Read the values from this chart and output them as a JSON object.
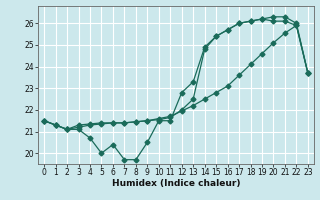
{
  "xlabel": "Humidex (Indice chaleur)",
  "bg_color": "#cce8ec",
  "grid_color": "#ffffff",
  "line_color": "#1a6b5a",
  "ylim": [
    19.5,
    26.8
  ],
  "xlim": [
    -0.5,
    23.5
  ],
  "yticks": [
    20,
    21,
    22,
    23,
    24,
    25,
    26
  ],
  "xticks": [
    0,
    1,
    2,
    3,
    4,
    5,
    6,
    7,
    8,
    9,
    10,
    11,
    12,
    13,
    14,
    15,
    16,
    17,
    18,
    19,
    20,
    21,
    22,
    23
  ],
  "line1_y": [
    21.5,
    21.3,
    21.1,
    21.1,
    20.7,
    20.0,
    20.4,
    19.7,
    19.7,
    20.5,
    21.5,
    21.5,
    22.8,
    23.3,
    24.9,
    25.4,
    25.7,
    26.0,
    26.1,
    26.2,
    26.1,
    26.1,
    25.9,
    23.7
  ],
  "line2_y": [
    21.5,
    21.3,
    21.1,
    21.2,
    21.3,
    21.35,
    21.4,
    21.4,
    21.45,
    21.5,
    21.6,
    21.7,
    21.95,
    22.2,
    22.5,
    22.8,
    23.1,
    23.6,
    24.1,
    24.6,
    25.1,
    25.55,
    25.9,
    23.7
  ],
  "line3_y": [
    21.5,
    21.3,
    21.1,
    21.3,
    21.35,
    21.4,
    21.4,
    21.4,
    21.45,
    21.5,
    21.55,
    21.65,
    22.0,
    22.5,
    24.8,
    25.4,
    25.7,
    26.0,
    26.1,
    26.2,
    26.3,
    26.3,
    26.0,
    23.7
  ]
}
